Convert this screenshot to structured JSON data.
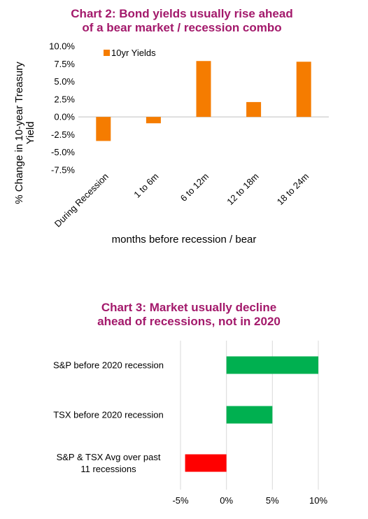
{
  "chart_data": [
    {
      "type": "bar",
      "title_lines": [
        "Chart 2: Bond yields usually rise ahead",
        "of a bear market / recession combo"
      ],
      "xlabel": "months before recession / bear",
      "ylabel_lines": [
        "% Change in 10-year Treasury",
        "Yield"
      ],
      "categories": [
        "During Recession",
        "1 to 6m",
        "6 to 12m",
        "12 to 18m",
        "18 to 24m"
      ],
      "series": [
        {
          "name": "10yr Yields",
          "color": "#f57c00",
          "values": [
            -3.4,
            -0.9,
            7.9,
            2.1,
            7.8
          ]
        }
      ],
      "ylim": [
        -7.5,
        10.0
      ],
      "yticks": [
        "10.0%",
        "7.5%",
        "5.0%",
        "2.5%",
        "0.0%",
        "-2.5%",
        "-5.0%",
        "-7.5%"
      ],
      "legend_position": "top-left",
      "grid": false
    },
    {
      "type": "bar",
      "orientation": "horizontal",
      "title_lines": [
        "Chart 3: Market usually decline",
        "ahead of recessions, not in 2020"
      ],
      "categories": [
        [
          "S&P before 2020 recession"
        ],
        [
          "TSX before 2020 recession"
        ],
        [
          "S&P & TSX Avg over past",
          "11 recessions"
        ]
      ],
      "values": [
        10.0,
        5.0,
        -4.5
      ],
      "colors": [
        "#00b050",
        "#00b050",
        "#ff0000"
      ],
      "xlim": [
        -5,
        10
      ],
      "xticks": [
        "-5%",
        "0%",
        "5%",
        "10%"
      ],
      "grid": true
    }
  ]
}
